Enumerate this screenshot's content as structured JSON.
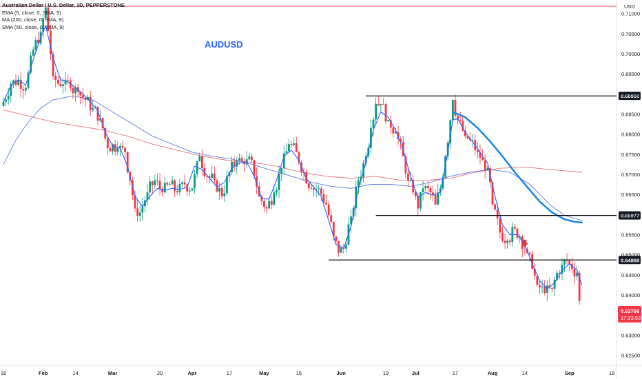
{
  "chart_data": {
    "type": "candlestick",
    "title": "AUDUSD",
    "symbol_line": "Australian Dollar / U.S. Dollar, 1D, PEPPERSTONE",
    "indicators": [
      {
        "label": "EMA (5, close, 0, SMA, 5)",
        "color": "#2962ff"
      },
      {
        "label": "MA (200, close, 0, SMA, 9)",
        "color": "#e57373"
      },
      {
        "label": "SMA (50, close, 0, SMA, 9)",
        "color": "#5b7be8"
      }
    ],
    "currency": "USD",
    "ylim": [
      0.6225,
      0.7125
    ],
    "y_ticks": [
      "0.71000",
      "0.70500",
      "0.70000",
      "0.69500",
      "0.69000",
      "0.68500",
      "0.68000",
      "0.67500",
      "0.67000",
      "0.66500",
      "0.66000",
      "0.65500",
      "0.65000",
      "0.64500",
      "0.64000",
      "0.63500",
      "0.63000",
      "0.62500"
    ],
    "x_ticks": [
      {
        "label": "16",
        "day": 0,
        "bold": false
      },
      {
        "label": "Feb",
        "day": 16,
        "bold": true
      },
      {
        "label": "14",
        "day": 29,
        "bold": false
      },
      {
        "label": "Mar",
        "day": 44,
        "bold": true
      },
      {
        "label": "20",
        "day": 63,
        "bold": false
      },
      {
        "label": "Apr",
        "day": 76,
        "bold": true
      },
      {
        "label": "17",
        "day": 91,
        "bold": false
      },
      {
        "label": "May",
        "day": 105,
        "bold": true
      },
      {
        "label": "15",
        "day": 119,
        "bold": false
      },
      {
        "label": "Jun",
        "day": 136,
        "bold": true
      },
      {
        "label": "19",
        "day": 154,
        "bold": false
      },
      {
        "label": "Jul",
        "day": 166,
        "bold": true
      },
      {
        "label": "17",
        "day": 182,
        "bold": false
      },
      {
        "label": "Aug",
        "day": 197,
        "bold": true
      },
      {
        "label": "14",
        "day": 210,
        "bold": false
      },
      {
        "label": "Sep",
        "day": 228,
        "bold": true
      },
      {
        "label": "18",
        "day": 245,
        "bold": false
      }
    ],
    "levels": [
      {
        "price": 0.7118,
        "label": ""
      },
      {
        "price": 0.6895,
        "label": "0.68950"
      },
      {
        "price": 0.65977,
        "label": "0.65977"
      },
      {
        "price": 0.64868,
        "label": "0.64868"
      }
    ],
    "current_price": "0.63766",
    "countdown": "17:33:53",
    "arrow_marker": {
      "day": 210,
      "price": 0.6527,
      "direction": "down"
    },
    "candle_keypoints": [
      [
        0,
        0.688
      ],
      [
        3,
        0.6925
      ],
      [
        6,
        0.6935
      ],
      [
        9,
        0.6915
      ],
      [
        12,
        0.701
      ],
      [
        15,
        0.7055
      ],
      [
        17,
        0.7115
      ],
      [
        20,
        0.6945
      ],
      [
        22,
        0.6925
      ],
      [
        25,
        0.6935
      ],
      [
        27,
        0.6915
      ],
      [
        30,
        0.6905
      ],
      [
        33,
        0.6885
      ],
      [
        36,
        0.6865
      ],
      [
        39,
        0.684
      ],
      [
        42,
        0.6765
      ],
      [
        44,
        0.6775
      ],
      [
        46,
        0.6765
      ],
      [
        49,
        0.6755
      ],
      [
        51,
        0.6685
      ],
      [
        53,
        0.6615
      ],
      [
        55,
        0.6605
      ],
      [
        58,
        0.6655
      ],
      [
        61,
        0.6685
      ],
      [
        64,
        0.6655
      ],
      [
        67,
        0.6675
      ],
      [
        70,
        0.6655
      ],
      [
        73,
        0.6675
      ],
      [
        76,
        0.6665
      ],
      [
        79,
        0.6745
      ],
      [
        82,
        0.6695
      ],
      [
        85,
        0.6685
      ],
      [
        88,
        0.6645
      ],
      [
        91,
        0.6705
      ],
      [
        94,
        0.6735
      ],
      [
        97,
        0.6725
      ],
      [
        100,
        0.6735
      ],
      [
        103,
        0.6645
      ],
      [
        106,
        0.6615
      ],
      [
        109,
        0.6655
      ],
      [
        112,
        0.6715
      ],
      [
        115,
        0.6775
      ],
      [
        118,
        0.6755
      ],
      [
        121,
        0.6705
      ],
      [
        124,
        0.6665
      ],
      [
        127,
        0.6665
      ],
      [
        130,
        0.6625
      ],
      [
        133,
        0.6545
      ],
      [
        135,
        0.6505
      ],
      [
        137,
        0.6515
      ],
      [
        140,
        0.6595
      ],
      [
        143,
        0.6685
      ],
      [
        146,
        0.6745
      ],
      [
        148,
        0.6815
      ],
      [
        150,
        0.6875
      ],
      [
        152,
        0.6875
      ],
      [
        155,
        0.6835
      ],
      [
        158,
        0.6805
      ],
      [
        161,
        0.6745
      ],
      [
        163,
        0.6685
      ],
      [
        165,
        0.6655
      ],
      [
        167,
        0.6615
      ],
      [
        169,
        0.6665
      ],
      [
        172,
        0.6655
      ],
      [
        174,
        0.6625
      ],
      [
        176,
        0.6665
      ],
      [
        178,
        0.6745
      ],
      [
        180,
        0.6835
      ],
      [
        181,
        0.6885
      ],
      [
        183,
        0.6835
      ],
      [
        186,
        0.6795
      ],
      [
        188,
        0.6785
      ],
      [
        191,
        0.6755
      ],
      [
        193,
        0.6735
      ],
      [
        195,
        0.6715
      ],
      [
        197,
        0.6625
      ],
      [
        200,
        0.6555
      ],
      [
        203,
        0.6535
      ],
      [
        206,
        0.6565
      ],
      [
        208,
        0.6545
      ],
      [
        211,
        0.6505
      ],
      [
        213,
        0.6465
      ],
      [
        215,
        0.6425
      ],
      [
        218,
        0.6405
      ],
      [
        221,
        0.6415
      ],
      [
        223,
        0.6455
      ],
      [
        225,
        0.6475
      ],
      [
        227,
        0.6485
      ],
      [
        229,
        0.6465
      ],
      [
        231,
        0.6455
      ],
      [
        232,
        0.6385
      ]
    ],
    "ema5_keypoints": [
      [
        0,
        0.688
      ],
      [
        3,
        0.692
      ],
      [
        6,
        0.6935
      ],
      [
        9,
        0.6922
      ],
      [
        12,
        0.6985
      ],
      [
        15,
        0.704
      ],
      [
        17,
        0.707
      ],
      [
        20,
        0.699
      ],
      [
        23,
        0.6935
      ],
      [
        26,
        0.693
      ],
      [
        29,
        0.6915
      ],
      [
        32,
        0.69
      ],
      [
        35,
        0.688
      ],
      [
        38,
        0.6858
      ],
      [
        41,
        0.6805
      ],
      [
        44,
        0.677
      ],
      [
        47,
        0.6765
      ],
      [
        50,
        0.672
      ],
      [
        53,
        0.6645
      ],
      [
        56,
        0.662
      ],
      [
        59,
        0.6645
      ],
      [
        62,
        0.6665
      ],
      [
        65,
        0.666
      ],
      [
        68,
        0.6665
      ],
      [
        71,
        0.6662
      ],
      [
        74,
        0.6668
      ],
      [
        77,
        0.672
      ],
      [
        80,
        0.6712
      ],
      [
        83,
        0.669
      ],
      [
        86,
        0.6668
      ],
      [
        89,
        0.668
      ],
      [
        92,
        0.6715
      ],
      [
        95,
        0.6728
      ],
      [
        98,
        0.673
      ],
      [
        101,
        0.6695
      ],
      [
        104,
        0.664
      ],
      [
        107,
        0.6638
      ],
      [
        110,
        0.6685
      ],
      [
        113,
        0.6745
      ],
      [
        116,
        0.676
      ],
      [
        119,
        0.6735
      ],
      [
        122,
        0.669
      ],
      [
        125,
        0.6668
      ],
      [
        128,
        0.6645
      ],
      [
        131,
        0.6585
      ],
      [
        134,
        0.6525
      ],
      [
        137,
        0.6515
      ],
      [
        140,
        0.657
      ],
      [
        143,
        0.6665
      ],
      [
        146,
        0.673
      ],
      [
        149,
        0.681
      ],
      [
        152,
        0.6855
      ],
      [
        155,
        0.6842
      ],
      [
        158,
        0.681
      ],
      [
        161,
        0.676
      ],
      [
        164,
        0.6695
      ],
      [
        167,
        0.6642
      ],
      [
        170,
        0.6655
      ],
      [
        173,
        0.6648
      ],
      [
        176,
        0.6655
      ],
      [
        179,
        0.6755
      ],
      [
        181,
        0.6835
      ],
      [
        183,
        0.6838
      ],
      [
        186,
        0.6805
      ],
      [
        189,
        0.678
      ],
      [
        192,
        0.6755
      ],
      [
        195,
        0.6728
      ],
      [
        198,
        0.6645
      ],
      [
        201,
        0.6575
      ],
      [
        204,
        0.655
      ],
      [
        207,
        0.655
      ],
      [
        210,
        0.6525
      ],
      [
        213,
        0.6478
      ],
      [
        216,
        0.6435
      ],
      [
        219,
        0.6415
      ],
      [
        222,
        0.643
      ],
      [
        225,
        0.646
      ],
      [
        228,
        0.6478
      ],
      [
        231,
        0.6462
      ],
      [
        233,
        0.6425
      ]
    ],
    "ma200_keypoints": [
      [
        0,
        0.686
      ],
      [
        10,
        0.6845
      ],
      [
        20,
        0.683
      ],
      [
        30,
        0.682
      ],
      [
        40,
        0.681
      ],
      [
        50,
        0.6795
      ],
      [
        60,
        0.6775
      ],
      [
        70,
        0.676
      ],
      [
        80,
        0.6745
      ],
      [
        90,
        0.6735
      ],
      [
        100,
        0.673
      ],
      [
        110,
        0.672
      ],
      [
        120,
        0.6705
      ],
      [
        130,
        0.6695
      ],
      [
        140,
        0.669
      ],
      [
        150,
        0.6695
      ],
      [
        160,
        0.6685
      ],
      [
        170,
        0.6685
      ],
      [
        180,
        0.669
      ],
      [
        190,
        0.6705
      ],
      [
        200,
        0.6715
      ],
      [
        210,
        0.6718
      ],
      [
        220,
        0.6712
      ],
      [
        233,
        0.6705
      ]
    ],
    "sma50_keypoints": [
      [
        0,
        0.6725
      ],
      [
        5,
        0.6785
      ],
      [
        10,
        0.683
      ],
      [
        15,
        0.6865
      ],
      [
        20,
        0.6885
      ],
      [
        28,
        0.6895
      ],
      [
        36,
        0.6885
      ],
      [
        44,
        0.6855
      ],
      [
        52,
        0.6825
      ],
      [
        60,
        0.6795
      ],
      [
        68,
        0.6775
      ],
      [
        76,
        0.6755
      ],
      [
        84,
        0.6745
      ],
      [
        92,
        0.6738
      ],
      [
        100,
        0.6725
      ],
      [
        108,
        0.671
      ],
      [
        116,
        0.6695
      ],
      [
        124,
        0.668
      ],
      [
        132,
        0.667
      ],
      [
        140,
        0.6665
      ],
      [
        148,
        0.6675
      ],
      [
        156,
        0.6675
      ],
      [
        164,
        0.667
      ],
      [
        172,
        0.668
      ],
      [
        180,
        0.6695
      ],
      [
        188,
        0.6705
      ],
      [
        196,
        0.6712
      ],
      [
        204,
        0.6705
      ],
      [
        212,
        0.6675
      ],
      [
        220,
        0.6625
      ],
      [
        226,
        0.6598
      ],
      [
        233,
        0.6585
      ]
    ],
    "bold_ma_keypoints": [
      [
        181,
        0.6855
      ],
      [
        186,
        0.6842
      ],
      [
        191,
        0.6815
      ],
      [
        196,
        0.6782
      ],
      [
        201,
        0.6745
      ],
      [
        206,
        0.6705
      ],
      [
        211,
        0.6668
      ],
      [
        216,
        0.6632
      ],
      [
        221,
        0.6605
      ],
      [
        226,
        0.6588
      ],
      [
        230,
        0.6582
      ],
      [
        233,
        0.658
      ]
    ]
  }
}
